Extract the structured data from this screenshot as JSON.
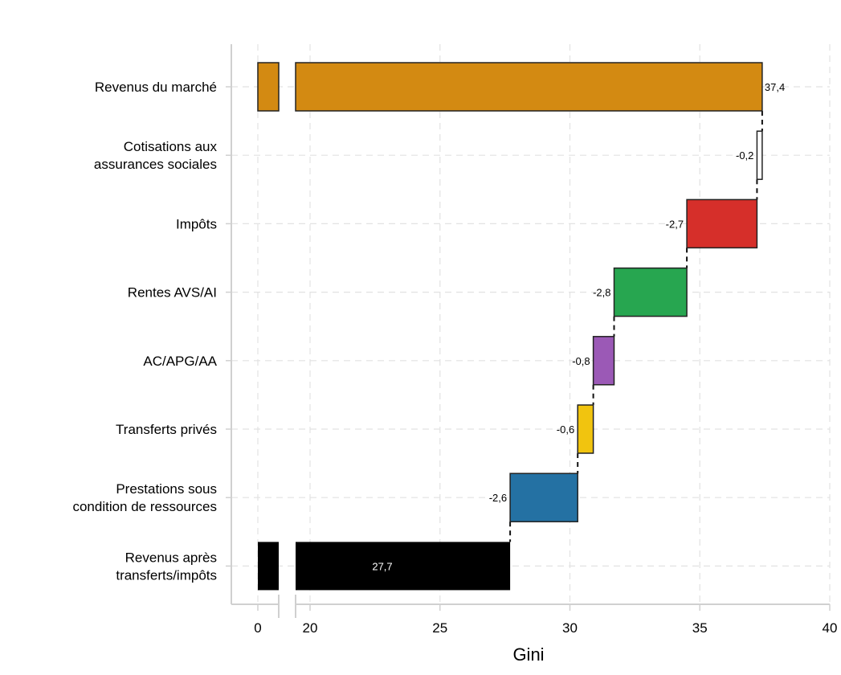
{
  "chart_data": {
    "type": "bar",
    "subtype": "waterfall-horizontal",
    "title": "",
    "xlabel": "Gini",
    "ylabel": "",
    "xlim": [
      0,
      40
    ],
    "axis_break": [
      0,
      20
    ],
    "xticks": [
      0,
      20,
      25,
      30,
      35,
      40
    ],
    "xtick_labels": [
      "0",
      "20",
      "25",
      "30",
      "35",
      "40"
    ],
    "grid": true,
    "categories": [
      "Revenus du marché",
      "Cotisations aux\nassurances sociales",
      "Impôts",
      "Rentes AVS/AI",
      "AC/APG/AA",
      "Transferts privés",
      "Prestations sous\ncondition de ressources",
      "Revenus après\ntransferts/impôts"
    ],
    "bars": [
      {
        "name": "Revenus du marché",
        "kind": "total",
        "start": 0,
        "end": 37.4,
        "label": "37,4",
        "color": "#d38a12"
      },
      {
        "name": "Cotisations aux assurances sociales",
        "kind": "delta",
        "start": 37.4,
        "end": 37.2,
        "label": "-0,2",
        "color": "#ffffff"
      },
      {
        "name": "Impôts",
        "kind": "delta",
        "start": 37.2,
        "end": 34.5,
        "label": "-2,7",
        "color": "#d62f2a"
      },
      {
        "name": "Rentes AVS/AI",
        "kind": "delta",
        "start": 34.5,
        "end": 31.7,
        "label": "-2,8",
        "color": "#27a650"
      },
      {
        "name": "AC/APG/AA",
        "kind": "delta",
        "start": 31.7,
        "end": 30.9,
        "label": "-0,8",
        "color": "#9b59b6"
      },
      {
        "name": "Transferts privés",
        "kind": "delta",
        "start": 30.9,
        "end": 30.3,
        "label": "-0,6",
        "color": "#f1c40f"
      },
      {
        "name": "Prestations sous condition de ressources",
        "kind": "delta",
        "start": 30.3,
        "end": 27.7,
        "label": "-2,6",
        "color": "#2471a3"
      },
      {
        "name": "Revenus après transferts/impôts",
        "kind": "total",
        "start": 0,
        "end": 27.7,
        "label": "27,7",
        "color": "#000000"
      }
    ],
    "values": [
      37.4,
      -0.2,
      -2.7,
      -2.8,
      -0.8,
      -0.6,
      -2.6,
      27.7
    ]
  }
}
